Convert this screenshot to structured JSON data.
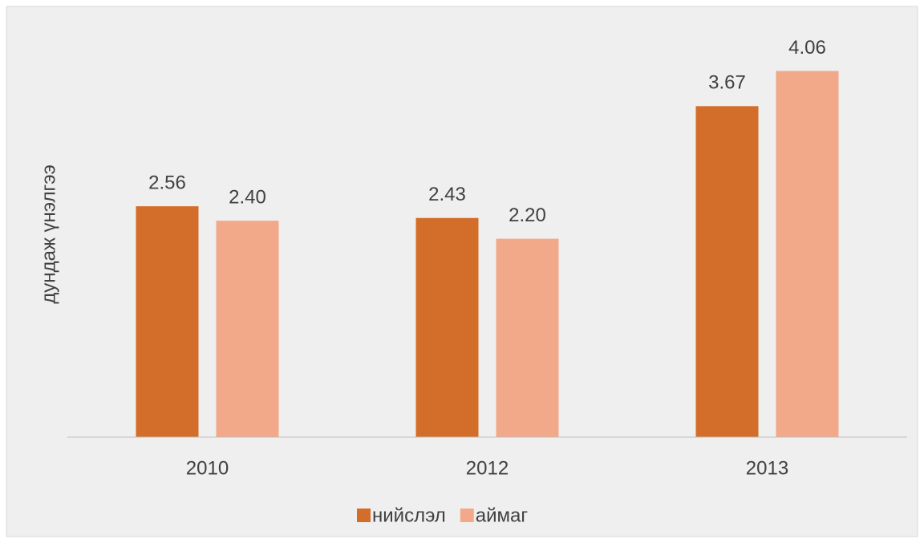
{
  "chart_data": {
    "type": "bar",
    "y_label": "дундаж үнэлгээ",
    "categories": [
      "2010",
      "2012",
      "2013"
    ],
    "series": [
      {
        "name": "нийслэл",
        "color": "#d36e2a",
        "values": [
          2.56,
          2.43,
          3.67
        ],
        "value_labels": [
          "2.56",
          "2.43",
          "3.67"
        ]
      },
      {
        "name": "аймаг",
        "color": "#f2a98a",
        "values": [
          2.4,
          2.2,
          4.06
        ],
        "value_labels": [
          "2.40",
          "2.20",
          "4.06"
        ]
      }
    ],
    "ylim": [
      0,
      4.5
    ],
    "grid": false,
    "legend": "bottom"
  }
}
